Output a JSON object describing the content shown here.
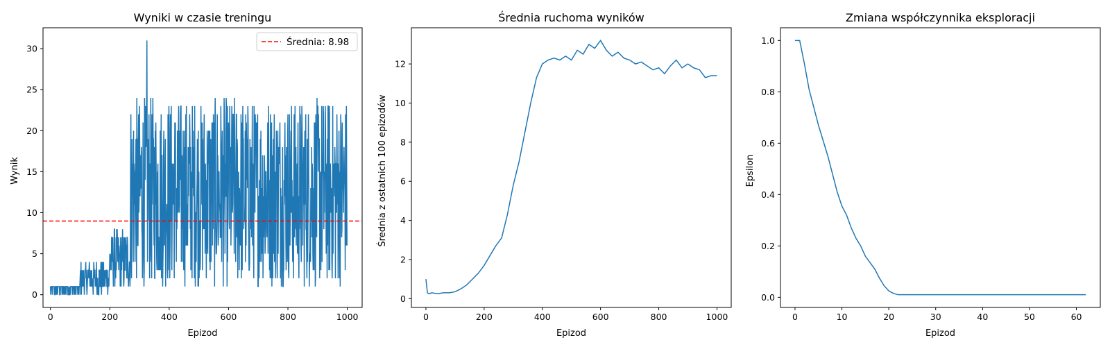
{
  "chart_data": [
    {
      "type": "line",
      "title": "Wyniki w czasie treningu",
      "xlabel": "Epizod",
      "ylabel": "Wynik",
      "xlim": [
        -25,
        1050
      ],
      "ylim": [
        -1.55,
        32.55
      ],
      "xticks": [
        0,
        200,
        400,
        600,
        800,
        1000
      ],
      "yticks": [
        0,
        5,
        10,
        15,
        20,
        25,
        30
      ],
      "color": "#1f77b4",
      "n_points": 1000,
      "phases": [
        {
          "x": [
            0,
            100
          ],
          "low": 0,
          "high": 1.5
        },
        {
          "x": [
            100,
            200
          ],
          "low": 0,
          "high": 4
        },
        {
          "x": [
            200,
            270
          ],
          "low": 0.5,
          "high": 8
        },
        {
          "x": [
            270,
            1000
          ],
          "low": 1,
          "high": 24
        }
      ],
      "peak": {
        "x": 325,
        "y": 31
      },
      "mean": {
        "value": 8.98,
        "label": "Średnia: 8.98",
        "color": "#ff0000",
        "style": "dashed"
      },
      "legend": {
        "position": "upper-right",
        "entries": [
          "Średnia: 8.98"
        ]
      },
      "grid": false
    },
    {
      "type": "line",
      "title": "Średnia ruchoma wyników",
      "xlabel": "Epizod",
      "ylabel": "Średnia z ostatnich 100 epizodów",
      "xlim": [
        -49.95,
        1048.95
      ],
      "ylim": [
        -0.45,
        13.85
      ],
      "xticks": [
        0,
        200,
        400,
        600,
        800,
        1000
      ],
      "yticks": [
        0,
        2,
        4,
        6,
        8,
        10,
        12
      ],
      "color": "#1f77b4",
      "x": [
        0,
        5,
        10,
        20,
        40,
        60,
        80,
        100,
        120,
        140,
        160,
        180,
        200,
        220,
        240,
        260,
        280,
        300,
        320,
        340,
        360,
        380,
        400,
        420,
        440,
        460,
        480,
        500,
        520,
        540,
        560,
        580,
        600,
        620,
        640,
        660,
        680,
        700,
        720,
        740,
        760,
        780,
        800,
        820,
        840,
        860,
        880,
        900,
        920,
        940,
        960,
        980,
        1000
      ],
      "y": [
        1.0,
        0.3,
        0.25,
        0.3,
        0.25,
        0.3,
        0.3,
        0.35,
        0.5,
        0.7,
        1.0,
        1.3,
        1.7,
        2.2,
        2.7,
        3.1,
        4.3,
        5.8,
        7.0,
        8.5,
        10.0,
        11.3,
        12.0,
        12.2,
        12.3,
        12.2,
        12.4,
        12.2,
        12.7,
        12.5,
        13.0,
        12.8,
        13.2,
        12.7,
        12.4,
        12.6,
        12.3,
        12.2,
        12.0,
        12.1,
        11.9,
        11.7,
        11.8,
        11.5,
        11.9,
        12.2,
        11.8,
        12.0,
        11.8,
        11.7,
        11.3,
        11.4,
        11.4
      ],
      "grid": false
    },
    {
      "type": "line",
      "title": "Zmiana współczynnika eksploracji",
      "xlabel": "Epizod",
      "ylabel": "Epsilon",
      "xlim": [
        -3.1,
        65.1
      ],
      "ylim": [
        -0.0395,
        1.0495
      ],
      "xticks": [
        0,
        10,
        20,
        30,
        40,
        50,
        60
      ],
      "yticks": [
        0.0,
        0.2,
        0.4,
        0.6,
        0.8,
        1.0
      ],
      "color": "#1f77b4",
      "x": [
        0,
        1,
        2,
        3,
        4,
        5,
        6,
        7,
        8,
        9,
        10,
        11,
        12,
        13,
        14,
        15,
        16,
        17,
        18,
        19,
        20,
        21,
        22,
        23,
        24,
        25,
        30,
        40,
        50,
        60,
        62
      ],
      "y": [
        1.0,
        1.0,
        0.91,
        0.81,
        0.74,
        0.67,
        0.61,
        0.55,
        0.48,
        0.41,
        0.355,
        0.32,
        0.27,
        0.23,
        0.2,
        0.16,
        0.135,
        0.11,
        0.075,
        0.045,
        0.025,
        0.015,
        0.01,
        0.01,
        0.01,
        0.01,
        0.01,
        0.01,
        0.01,
        0.01,
        0.01
      ],
      "grid": false
    }
  ]
}
